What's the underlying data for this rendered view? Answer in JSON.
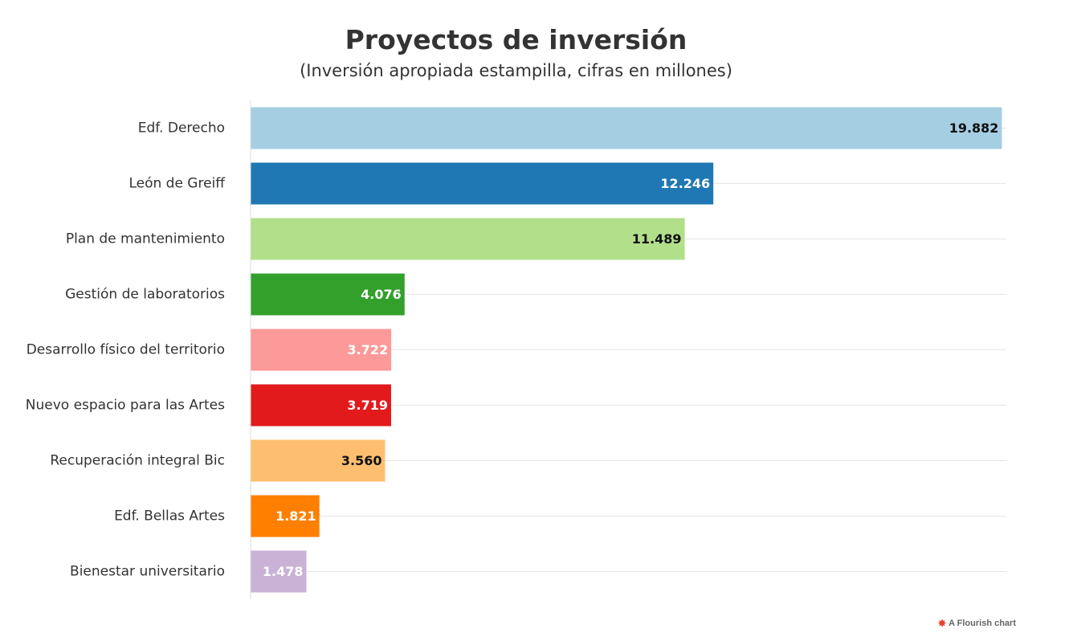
{
  "chart_data": {
    "type": "bar",
    "orientation": "horizontal",
    "title": "Proyectos de inversión",
    "subtitle": "(Inversión apropiada estampilla, cifras en millones)",
    "categories": [
      "Edf. Derecho",
      "León de Greiff",
      "Plan de mantenimiento",
      "Gestión de laboratorios",
      "Desarrollo físico del territorio",
      "Nuevo espacio para las Artes",
      "Recuperación integral Bic",
      "Edf. Bellas Artes",
      "Bienestar universitario"
    ],
    "values": [
      19882,
      12246,
      11489,
      4076,
      3722,
      3719,
      3560,
      1821,
      1478
    ],
    "value_labels": [
      "19.882",
      "12.246",
      "11.489",
      "4.076",
      "3.722",
      "3.719",
      "3.560",
      "1.821",
      "1.478"
    ],
    "colors": [
      "#a6cee3",
      "#1f78b4",
      "#b2df8a",
      "#33a02c",
      "#fb9a99",
      "#e31a1c",
      "#fdbf6f",
      "#ff7f00",
      "#cab2d6"
    ],
    "label_colors": [
      "#111111",
      "#ffffff",
      "#111111",
      "#ffffff",
      "#ffffff",
      "#ffffff",
      "#111111",
      "#ffffff",
      "#ffffff"
    ],
    "xlim": [
      0,
      20000
    ],
    "grid": true,
    "legend": "none"
  },
  "credit": {
    "icon": "flourish-logo-icon",
    "text": "A Flourish chart"
  }
}
